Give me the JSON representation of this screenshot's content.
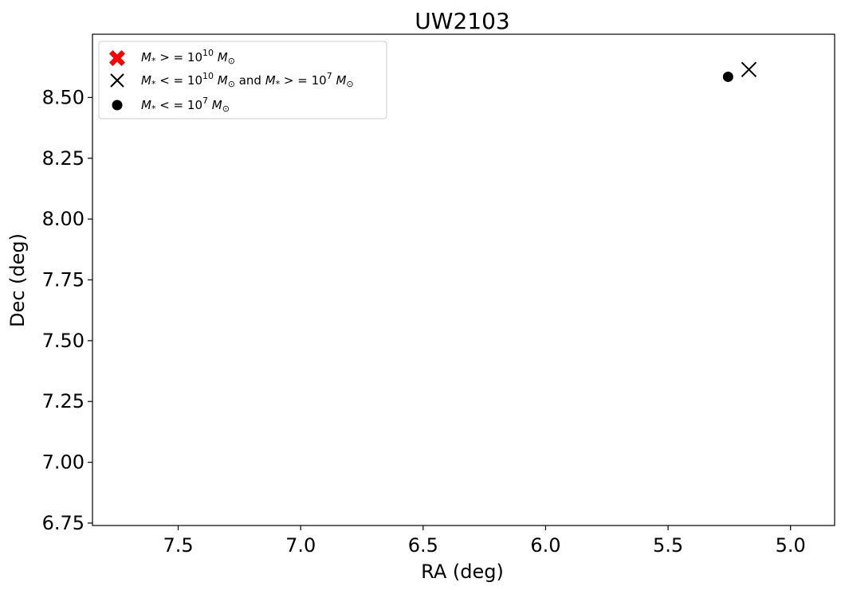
{
  "chart_data": {
    "type": "scatter",
    "title": "UW2103",
    "xlabel": "RA (deg)",
    "ylabel": "Dec (deg)",
    "xlim": [
      7.85,
      4.82
    ],
    "ylim": [
      6.74,
      8.76
    ],
    "x_inverted": true,
    "grid": false,
    "legend_position": "top-left",
    "x_ticks": [
      7.5,
      7.0,
      6.5,
      6.0,
      5.5,
      5.0
    ],
    "x_tick_labels": [
      "7.5",
      "7.0",
      "6.5",
      "6.0",
      "5.5",
      "5.0"
    ],
    "y_ticks": [
      6.75,
      7.0,
      7.25,
      7.5,
      7.75,
      8.0,
      8.25,
      8.5
    ],
    "y_tick_labels": [
      "6.75",
      "7.00",
      "7.25",
      "7.50",
      "7.75",
      "8.00",
      "8.25",
      "8.50"
    ],
    "series": [
      {
        "legend": "M_* >= 10^10 M_sun",
        "marker": "X-filled",
        "color": "#ff0000",
        "points": []
      },
      {
        "legend": "M_* <= 10^10 M_sun and M_* >= 10^7 M_sun",
        "marker": "x",
        "color": "#000000",
        "points": [
          {
            "x": 5.17,
            "y": 8.615
          }
        ]
      },
      {
        "legend": "M_* <= 10^7 M_sun",
        "marker": "circle",
        "color": "#000000",
        "points": [
          {
            "x": 5.255,
            "y": 8.585
          }
        ]
      }
    ]
  }
}
